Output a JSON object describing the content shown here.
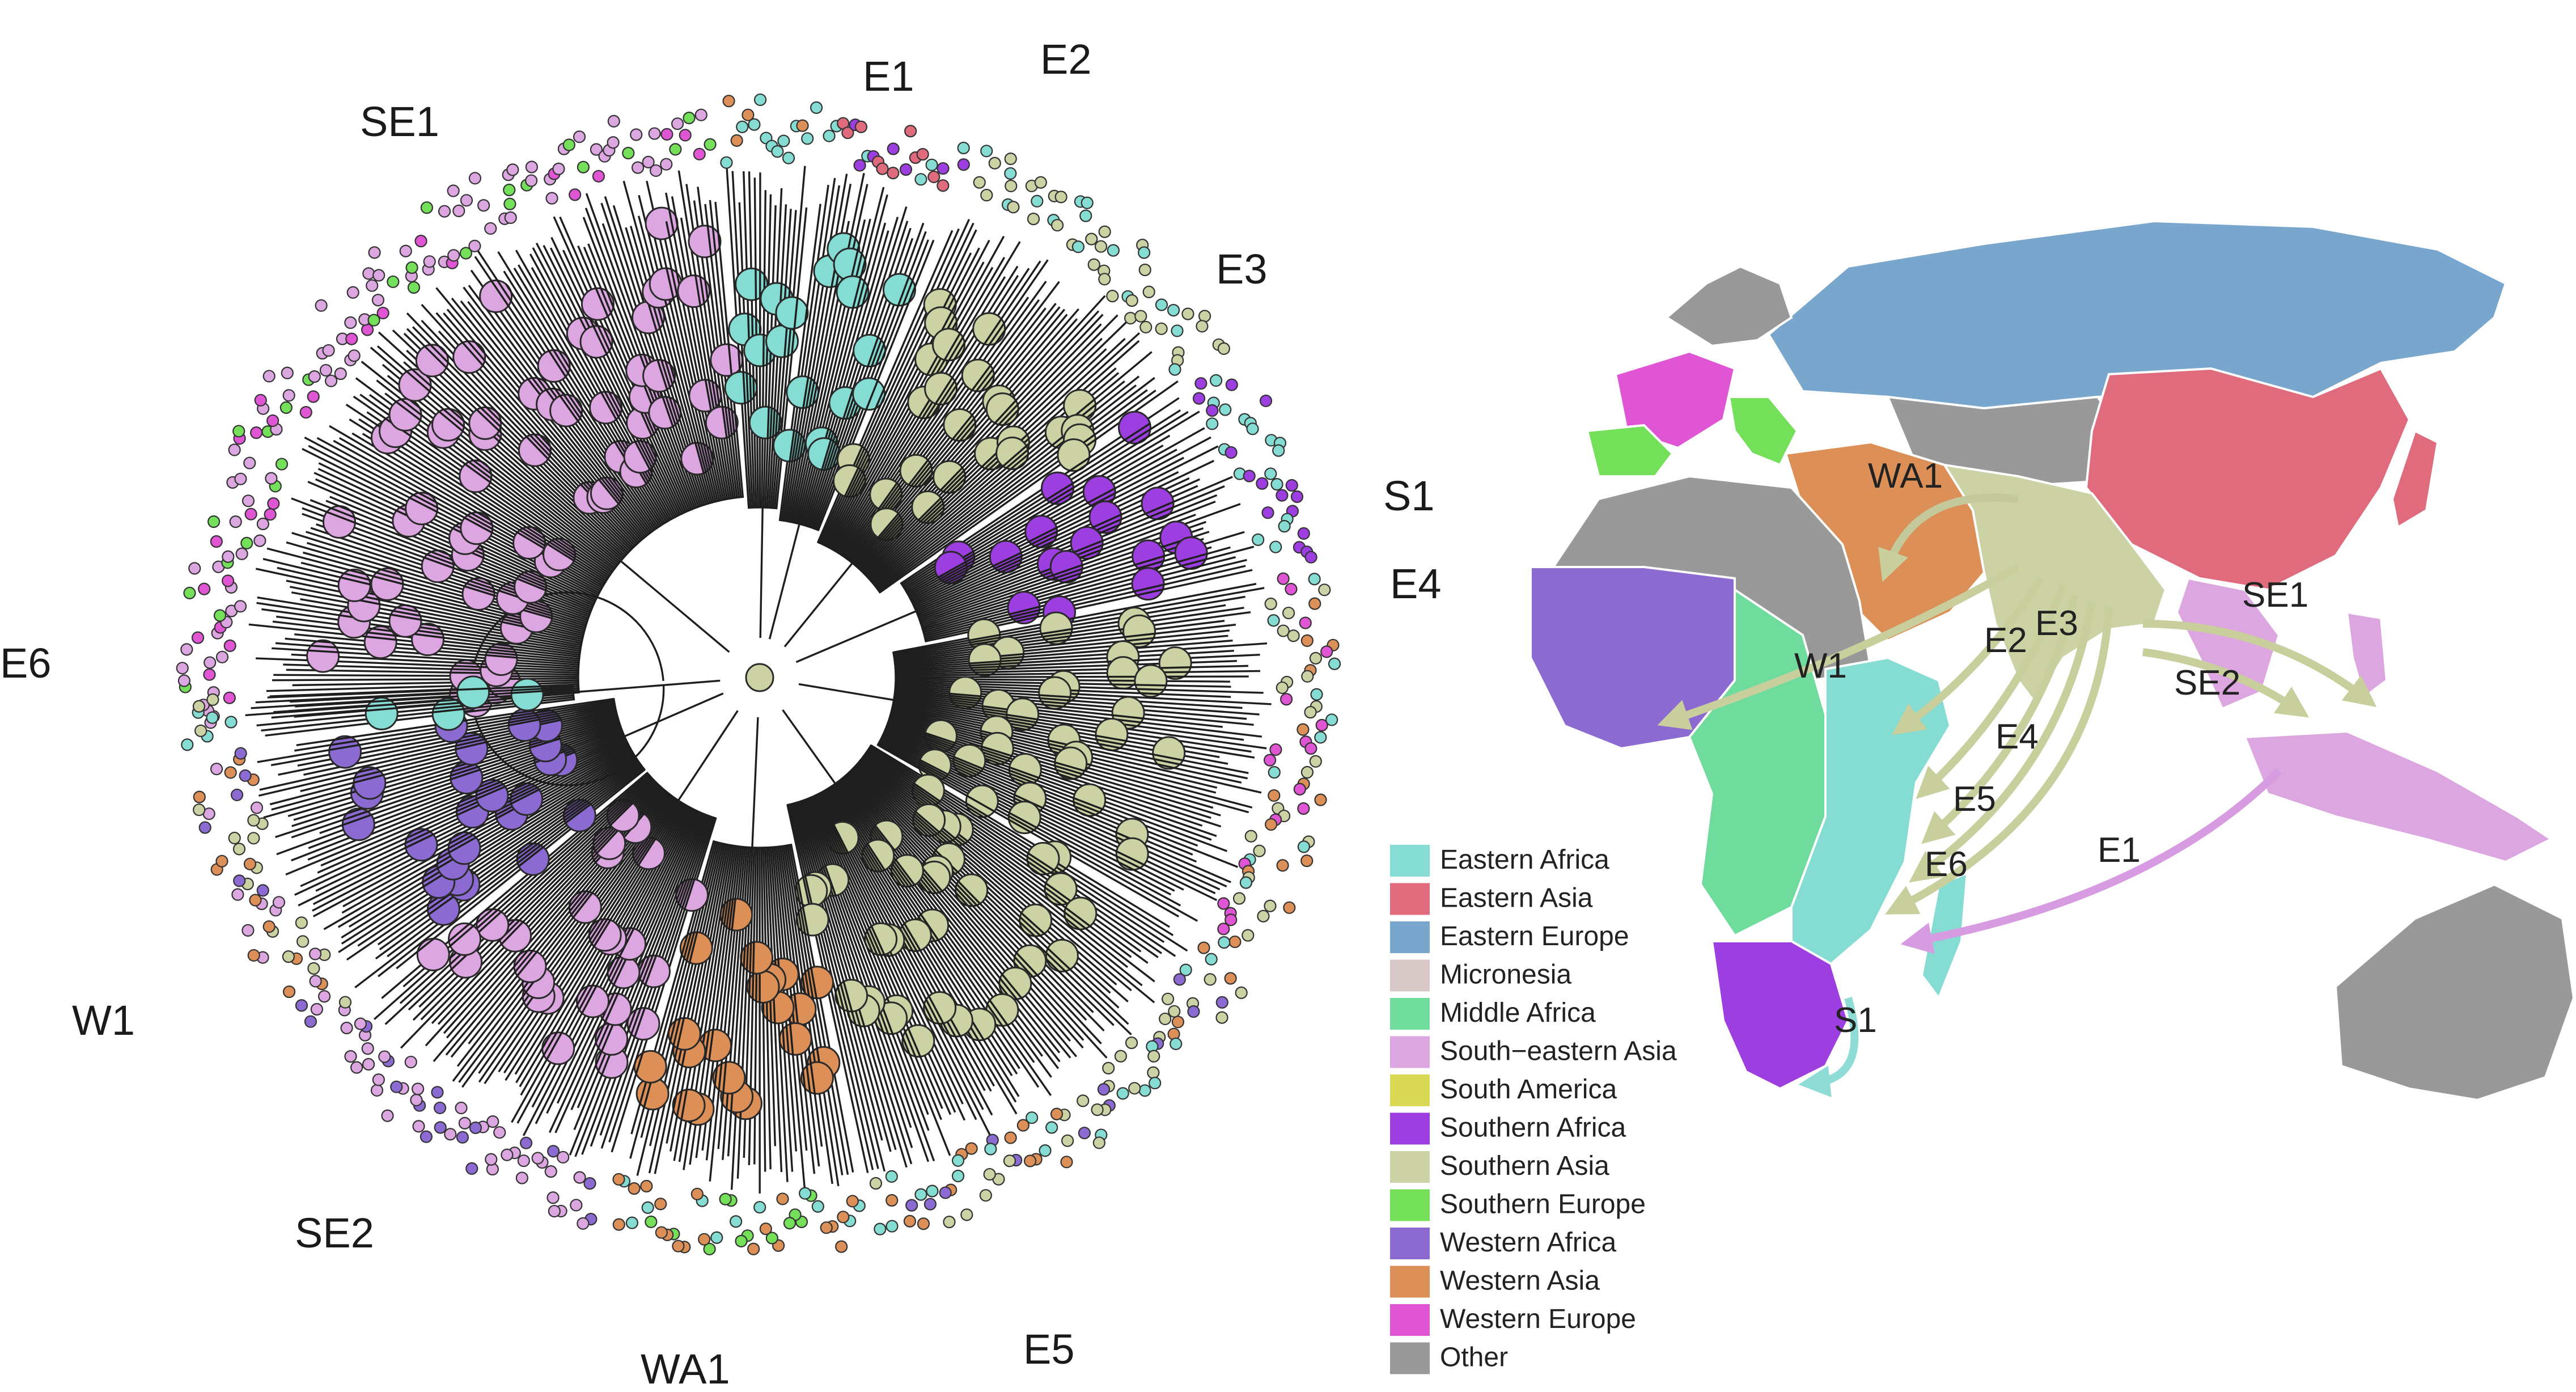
{
  "tree": {
    "clade_labels": [
      {
        "id": "SE1",
        "text": "SE1"
      },
      {
        "id": "E1",
        "text": "E1"
      },
      {
        "id": "E2",
        "text": "E2"
      },
      {
        "id": "E3",
        "text": "E3"
      },
      {
        "id": "S1",
        "text": "S1"
      },
      {
        "id": "E4",
        "text": "E4"
      },
      {
        "id": "E6",
        "text": "E6"
      },
      {
        "id": "W1",
        "text": "W1"
      },
      {
        "id": "SE2",
        "text": "SE2"
      },
      {
        "id": "WA1",
        "text": "WA1"
      },
      {
        "id": "E5",
        "text": "E5"
      }
    ],
    "clades": [
      {
        "id": "SE1",
        "region": "South-eastern Asia"
      },
      {
        "id": "E1",
        "region": "Eastern Africa"
      },
      {
        "id": "E2",
        "region": "Eastern Africa"
      },
      {
        "id": "E3",
        "region": "Eastern Africa"
      },
      {
        "id": "S1",
        "region": "Southern Africa"
      },
      {
        "id": "E4",
        "region": "Eastern Africa"
      },
      {
        "id": "E5",
        "region": "Eastern Africa"
      },
      {
        "id": "WA1",
        "region": "Western Asia"
      },
      {
        "id": "SE2",
        "region": "South-eastern Asia"
      },
      {
        "id": "W1",
        "region": "Western Africa"
      },
      {
        "id": "E6",
        "region": "Eastern Africa"
      }
    ]
  },
  "map": {
    "arrow_labels": [
      {
        "id": "WA1",
        "text": "WA1"
      },
      {
        "id": "W1",
        "text": "W1"
      },
      {
        "id": "E2",
        "text": "E2"
      },
      {
        "id": "E3",
        "text": "E3"
      },
      {
        "id": "E4",
        "text": "E4"
      },
      {
        "id": "E5",
        "text": "E5"
      },
      {
        "id": "E6",
        "text": "E6"
      },
      {
        "id": "SE1",
        "text": "SE1"
      },
      {
        "id": "SE2",
        "text": "SE2"
      },
      {
        "id": "E1",
        "text": "E1"
      },
      {
        "id": "S1",
        "text": "S1"
      }
    ],
    "arrow_colors": {
      "southern_asia": "#c9cf9c",
      "south_eastern_asia": "#d69be0",
      "eastern_africa": "#8fdcd6",
      "western_asia": "#c3c99a"
    }
  },
  "legend": {
    "items": [
      {
        "label": "Eastern Africa",
        "color": "#84dcd2"
      },
      {
        "label": "Eastern Asia",
        "color": "#e06b7c"
      },
      {
        "label": "Eastern Europe",
        "color": "#79a6cc"
      },
      {
        "label": "Micronesia",
        "color": "#d8c8c8"
      },
      {
        "label": "Middle Africa",
        "color": "#6fdc9e"
      },
      {
        "label": "South−eastern Asia",
        "color": "#dca6e0"
      },
      {
        "label": "South America",
        "color": "#d9d955"
      },
      {
        "label": "Southern Africa",
        "color": "#9c3ee0"
      },
      {
        "label": "Southern Asia",
        "color": "#ccd2a4"
      },
      {
        "label": "Southern Europe",
        "color": "#74e05a"
      },
      {
        "label": "Western Africa",
        "color": "#8b6ad2"
      },
      {
        "label": "Western Asia",
        "color": "#dc9058"
      },
      {
        "label": "Western Europe",
        "color": "#e055d4"
      },
      {
        "label": "Other",
        "color": "#999999"
      }
    ]
  }
}
